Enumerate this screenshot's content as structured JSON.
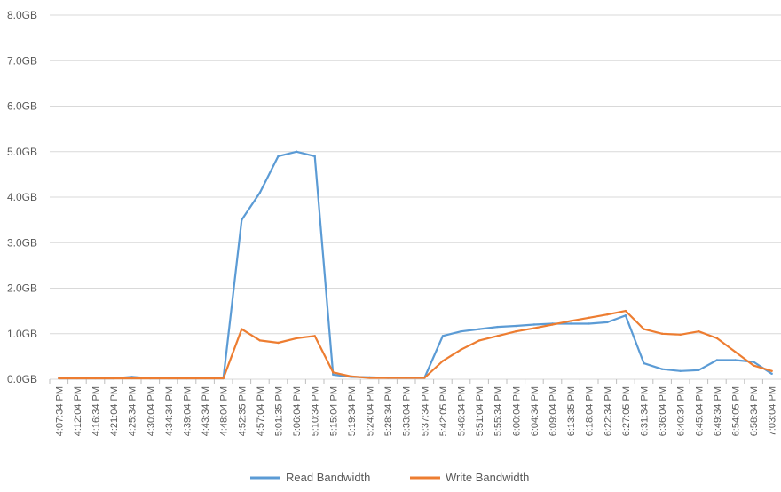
{
  "chart_data": {
    "type": "line",
    "title": "",
    "xlabel": "",
    "ylabel": "",
    "ylim": [
      0,
      8
    ],
    "y_unit": "GB",
    "yticks": [
      "0.0GB",
      "1.0GB",
      "2.0GB",
      "3.0GB",
      "4.0GB",
      "5.0GB",
      "6.0GB",
      "7.0GB",
      "8.0GB"
    ],
    "grid": true,
    "legend_position": "bottom",
    "x_categories": [
      "4:07:34 PM",
      "4:12:04 PM",
      "4:16:34 PM",
      "4:21:04 PM",
      "4:25:34 PM",
      "4:30:04 PM",
      "4:34:34 PM",
      "4:39:04 PM",
      "4:43:34 PM",
      "4:48:04 PM",
      "4:52:35 PM",
      "4:57:04 PM",
      "5:01:35 PM",
      "5:06:04 PM",
      "5:10:34 PM",
      "5:15:04 PM",
      "5:19:34 PM",
      "5:24:04 PM",
      "5:28:34 PM",
      "5:33:04 PM",
      "5:37:34 PM",
      "5:42:05 PM",
      "5:46:34 PM",
      "5:51:04 PM",
      "5:55:34 PM",
      "6:00:04 PM",
      "6:04:34 PM",
      "6:09:04 PM",
      "6:13:35 PM",
      "6:18:04 PM",
      "6:22:34 PM",
      "6:27:05 PM",
      "6:31:34 PM",
      "6:36:04 PM",
      "6:40:34 PM",
      "6:45:04 PM",
      "6:49:34 PM",
      "6:54:05 PM",
      "6:58:34 PM",
      "7:03:04 PM"
    ],
    "series": [
      {
        "name": "Read Bandwidth",
        "color": "#5b9bd5",
        "values": [
          0.02,
          0.02,
          0.02,
          0.02,
          0.05,
          0.02,
          0.02,
          0.02,
          0.02,
          0.02,
          3.5,
          4.1,
          4.9,
          5.0,
          4.9,
          0.1,
          0.05,
          0.04,
          0.03,
          0.03,
          0.03,
          0.95,
          1.05,
          1.1,
          1.15,
          1.17,
          1.2,
          1.22,
          1.22,
          1.22,
          1.25,
          1.4,
          0.35,
          0.22,
          0.18,
          0.2,
          0.42,
          0.42,
          0.38,
          0.12
        ]
      },
      {
        "name": "Write Bandwidth",
        "color": "#ed7d31",
        "values": [
          0.02,
          0.02,
          0.02,
          0.02,
          0.02,
          0.02,
          0.02,
          0.02,
          0.02,
          0.02,
          1.1,
          0.85,
          0.8,
          0.9,
          0.95,
          0.15,
          0.06,
          0.03,
          0.03,
          0.03,
          0.03,
          0.4,
          0.65,
          0.85,
          0.95,
          1.05,
          1.12,
          1.2,
          1.28,
          1.35,
          1.42,
          1.5,
          1.1,
          1.0,
          0.98,
          1.05,
          0.9,
          0.6,
          0.3,
          0.18
        ]
      }
    ]
  }
}
